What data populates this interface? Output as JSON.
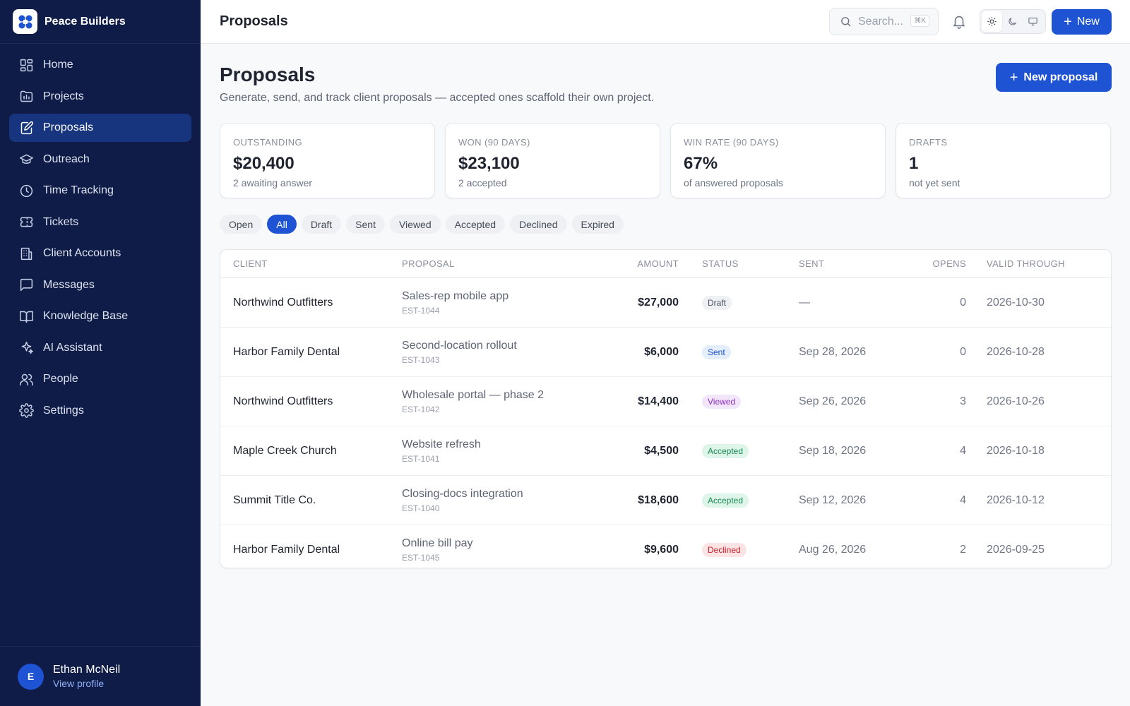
{
  "brand": {
    "name": "Peace Builders"
  },
  "sidebar": {
    "items": [
      {
        "label": "Home",
        "icon": "dashboard-icon",
        "active": false
      },
      {
        "label": "Projects",
        "icon": "projects-icon",
        "active": false
      },
      {
        "label": "Proposals",
        "icon": "proposals-icon",
        "active": true
      },
      {
        "label": "Outreach",
        "icon": "graduation-cap-icon",
        "active": false
      },
      {
        "label": "Time Tracking",
        "icon": "clock-icon",
        "active": false
      },
      {
        "label": "Tickets",
        "icon": "ticket-icon",
        "active": false
      },
      {
        "label": "Client Accounts",
        "icon": "building-icon",
        "active": false
      },
      {
        "label": "Messages",
        "icon": "message-icon",
        "active": false
      },
      {
        "label": "Knowledge Base",
        "icon": "book-icon",
        "active": false
      },
      {
        "label": "AI Assistant",
        "icon": "sparkles-icon",
        "active": false
      },
      {
        "label": "People",
        "icon": "people-icon",
        "active": false
      },
      {
        "label": "Settings",
        "icon": "gear-icon",
        "active": false
      }
    ],
    "user": {
      "initial": "E",
      "name": "Ethan McNeil",
      "link": "View profile"
    }
  },
  "topbar": {
    "title": "Proposals",
    "search_placeholder": "Search...",
    "search_shortcut": "⌘K",
    "new_label": "New"
  },
  "page": {
    "title": "Proposals",
    "subtitle": "Generate, send, and track client proposals — accepted ones scaffold their own project.",
    "new_proposal_label": "New proposal"
  },
  "stats": [
    {
      "label": "OUTSTANDING",
      "value": "$20,400",
      "note": "2 awaiting answer"
    },
    {
      "label": "WON (90 DAYS)",
      "value": "$23,100",
      "note": "2 accepted"
    },
    {
      "label": "WIN RATE (90 DAYS)",
      "value": "67%",
      "note": "of answered proposals"
    },
    {
      "label": "DRAFTS",
      "value": "1",
      "note": "not yet sent"
    }
  ],
  "filters": {
    "items": [
      "Open",
      "All",
      "Draft",
      "Sent",
      "Viewed",
      "Accepted",
      "Declined",
      "Expired"
    ],
    "active": "All"
  },
  "table": {
    "headers": {
      "client": "CLIENT",
      "proposal": "PROPOSAL",
      "amount": "AMOUNT",
      "status": "STATUS",
      "sent": "SENT",
      "opens": "OPENS",
      "valid": "VALID THROUGH"
    },
    "rows": [
      {
        "client": "Northwind Outfitters",
        "proposal": "Sales-rep mobile app",
        "code": "EST-1044",
        "amount": "$27,000",
        "status": "Draft",
        "sent": "—",
        "opens": "0",
        "valid": "2026-10-30"
      },
      {
        "client": "Harbor Family Dental",
        "proposal": "Second-location rollout",
        "code": "EST-1043",
        "amount": "$6,000",
        "status": "Sent",
        "sent": "Sep 28, 2026",
        "opens": "0",
        "valid": "2026-10-28"
      },
      {
        "client": "Northwind Outfitters",
        "proposal": "Wholesale portal — phase 2",
        "code": "EST-1042",
        "amount": "$14,400",
        "status": "Viewed",
        "sent": "Sep 26, 2026",
        "opens": "3",
        "valid": "2026-10-26"
      },
      {
        "client": "Maple Creek Church",
        "proposal": "Website refresh",
        "code": "EST-1041",
        "amount": "$4,500",
        "status": "Accepted",
        "sent": "Sep 18, 2026",
        "opens": "4",
        "valid": "2026-10-18"
      },
      {
        "client": "Summit Title Co.",
        "proposal": "Closing-docs integration",
        "code": "EST-1040",
        "amount": "$18,600",
        "status": "Accepted",
        "sent": "Sep 12, 2026",
        "opens": "4",
        "valid": "2026-10-12"
      },
      {
        "client": "Harbor Family Dental",
        "proposal": "Online bill pay",
        "code": "EST-1045",
        "amount": "$9,600",
        "status": "Declined",
        "sent": "Aug 26, 2026",
        "opens": "2",
        "valid": "2026-09-25"
      }
    ]
  },
  "status_colors": {
    "Draft": {
      "bg": "#eef0f3",
      "fg": "#4a5060"
    },
    "Sent": {
      "bg": "#e3edfc",
      "fg": "#1e53d4"
    },
    "Viewed": {
      "bg": "#f2e6fb",
      "fg": "#8a2bc4"
    },
    "Accepted": {
      "bg": "#def5e9",
      "fg": "#16884f"
    },
    "Declined": {
      "bg": "#fde4e4",
      "fg": "#c81e2a"
    }
  },
  "colors": {
    "sidebar": "#0f1c47",
    "accent": "#1e53d4"
  }
}
